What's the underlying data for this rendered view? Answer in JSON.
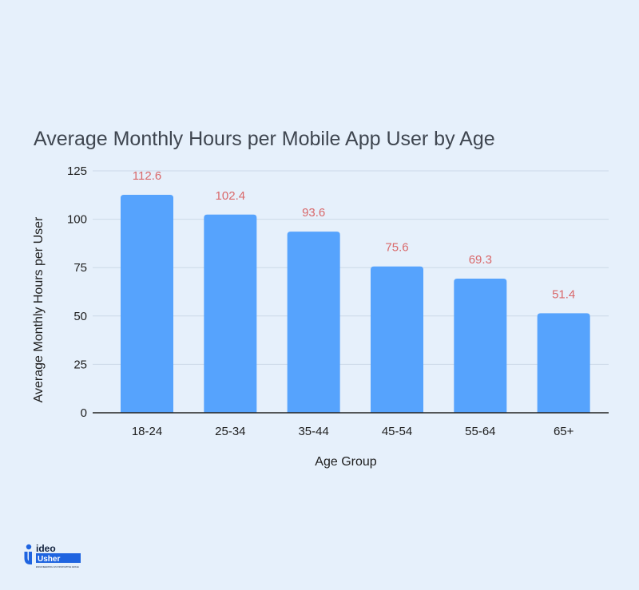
{
  "chart_data": {
    "type": "bar",
    "title": "Average Monthly Hours per Mobile App User by Age",
    "xlabel": "Age Group",
    "ylabel": "Average Monthly Hours per User",
    "categories": [
      "18-24",
      "25-34",
      "35-44",
      "45-54",
      "55-64",
      "65+"
    ],
    "values": [
      112.6,
      102.4,
      93.6,
      75.6,
      69.3,
      51.4
    ],
    "value_labels": [
      "112.6",
      "102.4",
      "93.6",
      "75.6",
      "69.3",
      "51.4"
    ],
    "ylim": [
      0,
      125
    ],
    "yticks": [
      0,
      25,
      50,
      75,
      100,
      125
    ],
    "grid": true,
    "colors": {
      "bar": "#56a3fd",
      "value_label": "#d9686a"
    }
  },
  "logo": {
    "brand_top": "ideo",
    "brand_bottom": "Usher",
    "tagline": "ENGINEERING AN INNOVATIVE EDGE",
    "colors": {
      "primary": "#1f64e0",
      "dark": "#13223f"
    }
  }
}
